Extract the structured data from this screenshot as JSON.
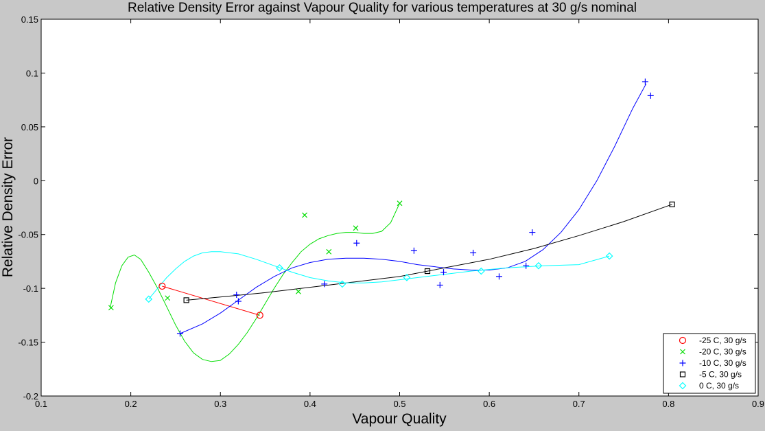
{
  "chart_data": {
    "type": "scatter",
    "title": "Relative Density Error against Vapour Quality for various temperatures at 30 g/s nominal",
    "xlabel": "Vapour Quality",
    "ylabel": "Relative Density Error",
    "xlim": [
      0.1,
      0.9
    ],
    "ylim": [
      -0.2,
      0.15
    ],
    "xticks": [
      0.1,
      0.2,
      0.3,
      0.4,
      0.5,
      0.6,
      0.7,
      0.8,
      0.9
    ],
    "yticks": [
      -0.2,
      -0.15,
      -0.1,
      -0.05,
      0,
      0.05,
      0.1,
      0.15
    ],
    "xtick_labels": [
      "0.1",
      "0.2",
      "0.3",
      "0.4",
      "0.5",
      "0.6",
      "0.7",
      "0.8",
      "0.9"
    ],
    "ytick_labels": [
      "-0.2",
      "-0.15",
      "-0.1",
      "-0.05",
      "0",
      "0.05",
      "0.1",
      "0.15"
    ],
    "grid": false,
    "legend_position": "bottom-right",
    "colors": {
      "figure_background": "#c8c8c8",
      "axes_background": "#ffffff"
    },
    "series": [
      {
        "name": "-25 C, 30 g/s",
        "marker": "circle",
        "color": "#ff0000",
        "points": [
          [
            0.235,
            -0.098
          ],
          [
            0.344,
            -0.125
          ]
        ],
        "fit_curve": [
          [
            0.235,
            -0.098
          ],
          [
            0.344,
            -0.125
          ]
        ]
      },
      {
        "name": "-20 C, 30 g/s",
        "marker": "x",
        "color": "#00dd00",
        "points": [
          [
            0.178,
            -0.118
          ],
          [
            0.241,
            -0.109
          ],
          [
            0.387,
            -0.103
          ],
          [
            0.394,
            -0.032
          ],
          [
            0.421,
            -0.066
          ],
          [
            0.451,
            -0.044
          ],
          [
            0.5,
            -0.021
          ]
        ],
        "fit_curve": [
          [
            0.177,
            -0.118
          ],
          [
            0.183,
            -0.095
          ],
          [
            0.19,
            -0.079
          ],
          [
            0.197,
            -0.071
          ],
          [
            0.204,
            -0.069
          ],
          [
            0.211,
            -0.073
          ],
          [
            0.22,
            -0.085
          ],
          [
            0.23,
            -0.1
          ],
          [
            0.24,
            -0.117
          ],
          [
            0.25,
            -0.134
          ],
          [
            0.26,
            -0.149
          ],
          [
            0.27,
            -0.16
          ],
          [
            0.28,
            -0.166
          ],
          [
            0.29,
            -0.168
          ],
          [
            0.3,
            -0.167
          ],
          [
            0.31,
            -0.161
          ],
          [
            0.32,
            -0.152
          ],
          [
            0.33,
            -0.141
          ],
          [
            0.34,
            -0.128
          ],
          [
            0.35,
            -0.114
          ],
          [
            0.36,
            -0.1
          ],
          [
            0.37,
            -0.087
          ],
          [
            0.38,
            -0.076
          ],
          [
            0.39,
            -0.066
          ],
          [
            0.4,
            -0.059
          ],
          [
            0.41,
            -0.054
          ],
          [
            0.42,
            -0.051
          ],
          [
            0.43,
            -0.049
          ],
          [
            0.44,
            -0.048
          ],
          [
            0.45,
            -0.048
          ],
          [
            0.46,
            -0.049
          ],
          [
            0.47,
            -0.049
          ],
          [
            0.48,
            -0.047
          ],
          [
            0.49,
            -0.039
          ],
          [
            0.5,
            -0.021
          ]
        ]
      },
      {
        "name": "-10 C, 30 g/s",
        "marker": "plus",
        "color": "#0000ff",
        "points": [
          [
            0.255,
            -0.142
          ],
          [
            0.318,
            -0.106
          ],
          [
            0.32,
            -0.112
          ],
          [
            0.416,
            -0.096
          ],
          [
            0.452,
            -0.058
          ],
          [
            0.516,
            -0.065
          ],
          [
            0.545,
            -0.097
          ],
          [
            0.549,
            -0.085
          ],
          [
            0.582,
            -0.067
          ],
          [
            0.611,
            -0.089
          ],
          [
            0.641,
            -0.079
          ],
          [
            0.648,
            -0.048
          ],
          [
            0.774,
            0.092
          ],
          [
            0.78,
            0.079
          ]
        ],
        "fit_curve": [
          [
            0.255,
            -0.142
          ],
          [
            0.28,
            -0.133
          ],
          [
            0.3,
            -0.123
          ],
          [
            0.32,
            -0.111
          ],
          [
            0.34,
            -0.099
          ],
          [
            0.36,
            -0.089
          ],
          [
            0.38,
            -0.081
          ],
          [
            0.4,
            -0.076
          ],
          [
            0.42,
            -0.073
          ],
          [
            0.44,
            -0.072
          ],
          [
            0.46,
            -0.072
          ],
          [
            0.48,
            -0.073
          ],
          [
            0.5,
            -0.075
          ],
          [
            0.52,
            -0.078
          ],
          [
            0.54,
            -0.08
          ],
          [
            0.56,
            -0.082
          ],
          [
            0.58,
            -0.083
          ],
          [
            0.6,
            -0.083
          ],
          [
            0.62,
            -0.081
          ],
          [
            0.64,
            -0.075
          ],
          [
            0.66,
            -0.064
          ],
          [
            0.68,
            -0.048
          ],
          [
            0.7,
            -0.027
          ],
          [
            0.72,
            0.0
          ],
          [
            0.74,
            0.032
          ],
          [
            0.76,
            0.067
          ],
          [
            0.775,
            0.09
          ]
        ]
      },
      {
        "name": "-5 C, 30 g/s",
        "marker": "square",
        "color": "#000000",
        "points": [
          [
            0.262,
            -0.111
          ],
          [
            0.531,
            -0.084
          ],
          [
            0.804,
            -0.022
          ]
        ],
        "fit_curve": [
          [
            0.262,
            -0.111
          ],
          [
            0.3,
            -0.108
          ],
          [
            0.35,
            -0.104
          ],
          [
            0.4,
            -0.099
          ],
          [
            0.45,
            -0.094
          ],
          [
            0.5,
            -0.089
          ],
          [
            0.55,
            -0.081
          ],
          [
            0.6,
            -0.073
          ],
          [
            0.65,
            -0.063
          ],
          [
            0.7,
            -0.051
          ],
          [
            0.75,
            -0.038
          ],
          [
            0.804,
            -0.022
          ]
        ]
      },
      {
        "name": "0 C, 30 g/s",
        "marker": "diamond",
        "color": "#00ffff",
        "points": [
          [
            0.22,
            -0.11
          ],
          [
            0.366,
            -0.081
          ],
          [
            0.436,
            -0.096
          ],
          [
            0.508,
            -0.09
          ],
          [
            0.591,
            -0.084
          ],
          [
            0.655,
            -0.079
          ],
          [
            0.734,
            -0.07
          ]
        ],
        "fit_curve": [
          [
            0.22,
            -0.11
          ],
          [
            0.23,
            -0.1
          ],
          [
            0.24,
            -0.09
          ],
          [
            0.25,
            -0.082
          ],
          [
            0.26,
            -0.075
          ],
          [
            0.27,
            -0.07
          ],
          [
            0.28,
            -0.067
          ],
          [
            0.29,
            -0.066
          ],
          [
            0.3,
            -0.066
          ],
          [
            0.32,
            -0.068
          ],
          [
            0.34,
            -0.073
          ],
          [
            0.36,
            -0.079
          ],
          [
            0.38,
            -0.085
          ],
          [
            0.4,
            -0.09
          ],
          [
            0.42,
            -0.093
          ],
          [
            0.44,
            -0.095
          ],
          [
            0.46,
            -0.095
          ],
          [
            0.48,
            -0.094
          ],
          [
            0.5,
            -0.092
          ],
          [
            0.54,
            -0.088
          ],
          [
            0.58,
            -0.084
          ],
          [
            0.62,
            -0.081
          ],
          [
            0.66,
            -0.079
          ],
          [
            0.7,
            -0.078
          ],
          [
            0.734,
            -0.07
          ]
        ]
      }
    ]
  }
}
